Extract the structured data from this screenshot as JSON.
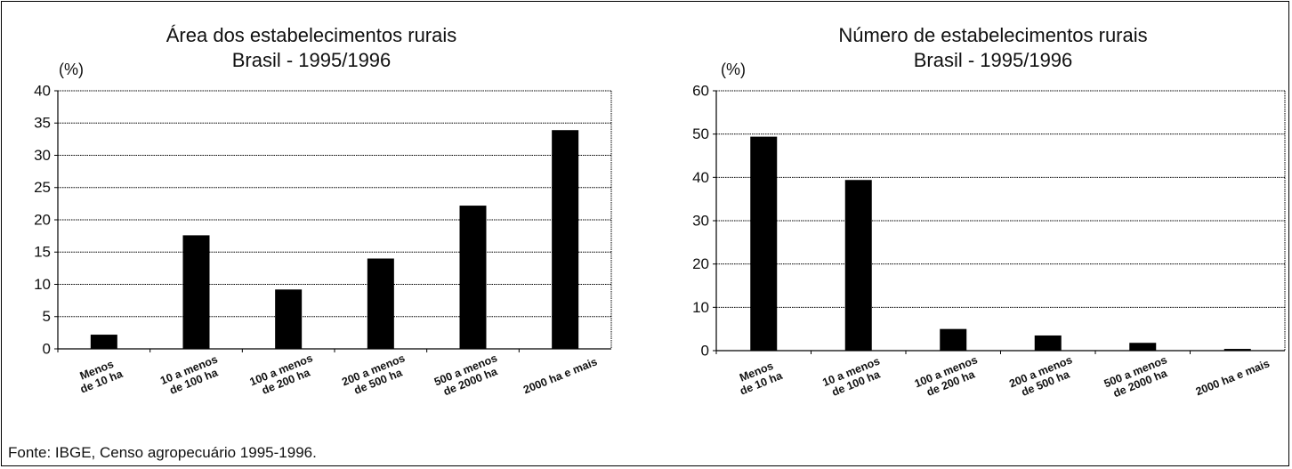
{
  "colors": {
    "bar": "#000000",
    "grid": "#000000",
    "background": "#ffffff"
  },
  "source": "Fonte: IBGE, Censo agropecuário 1995-1996.",
  "chart_data": [
    {
      "type": "bar",
      "title": "Área dos estabelecimentos rurais",
      "subtitle": "Brasil - 1995/1996",
      "ylabel": "(%)",
      "xlabel": "",
      "categories": [
        [
          "Menos",
          "de 10 ha"
        ],
        [
          "10 a menos",
          "de 100 ha"
        ],
        [
          "100 a menos",
          "de 200 ha"
        ],
        [
          "200 a menos",
          "de 500 ha"
        ],
        [
          "500 a menos",
          "de 2000 ha"
        ],
        [
          "2000 ha e mais"
        ]
      ],
      "values": [
        2.2,
        17.6,
        9.2,
        14.0,
        22.2,
        33.9
      ],
      "ylim": [
        0,
        40
      ],
      "yticks": [
        0,
        5,
        10,
        15,
        20,
        25,
        30,
        35,
        40
      ],
      "grid": true,
      "legend": "none"
    },
    {
      "type": "bar",
      "title": "Número de estabelecimentos rurais",
      "subtitle": "Brasil - 1995/1996",
      "ylabel": "(%)",
      "xlabel": "",
      "categories": [
        [
          "Menos",
          "de 10 ha"
        ],
        [
          "10 a menos",
          "de 100 ha"
        ],
        [
          "100 a menos",
          "de 200 ha"
        ],
        [
          "200 a menos",
          "de 500 ha"
        ],
        [
          "500 a menos",
          "de 2000 ha"
        ],
        [
          "2000 ha e mais"
        ]
      ],
      "values": [
        49.4,
        39.4,
        5.0,
        3.5,
        1.8,
        0.4
      ],
      "ylim": [
        0,
        60
      ],
      "yticks": [
        0,
        10,
        20,
        30,
        40,
        50,
        60
      ],
      "grid": true,
      "legend": "none"
    }
  ]
}
